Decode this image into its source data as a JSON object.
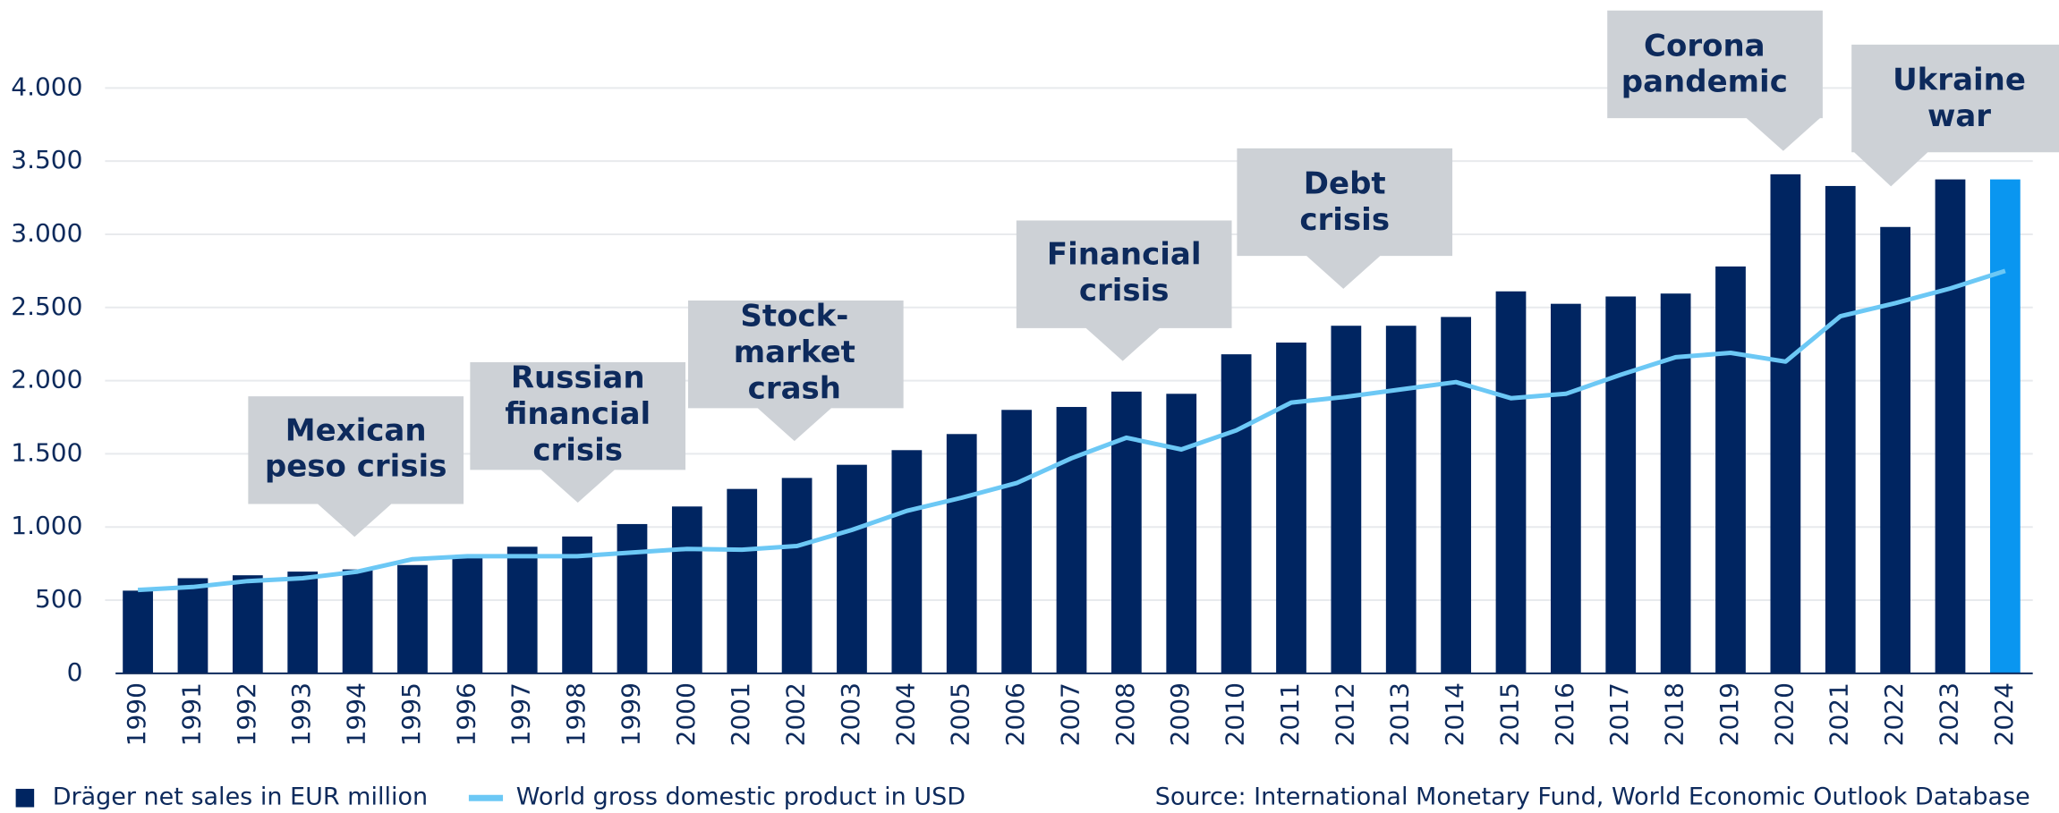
{
  "chart_data": {
    "type": "bar_line",
    "categories": [
      "1990",
      "1991",
      "1992",
      "1993",
      "1994",
      "1995",
      "1996",
      "1997",
      "1998",
      "1999",
      "2000",
      "2001",
      "2002",
      "2003",
      "2004",
      "2005",
      "2006",
      "2007",
      "2008",
      "2009",
      "2010",
      "2011",
      "2012",
      "2013",
      "2014",
      "2015",
      "2016",
      "2017",
      "2018",
      "2019",
      "2020",
      "2021",
      "2022",
      "2023",
      "2024"
    ],
    "series": [
      {
        "name": "Dräger net sales in EUR million",
        "type": "bar",
        "color": "#002561",
        "colors": [
          "#002561",
          "#002561",
          "#002561",
          "#002561",
          "#002561",
          "#002561",
          "#002561",
          "#002561",
          "#002561",
          "#002561",
          "#002561",
          "#002561",
          "#002561",
          "#002561",
          "#002561",
          "#002561",
          "#002561",
          "#002561",
          "#002561",
          "#002561",
          "#002561",
          "#002561",
          "#002561",
          "#002561",
          "#002561",
          "#002561",
          "#002561",
          "#002561",
          "#002561",
          "#002561",
          "#002561",
          "#002561",
          "#002561",
          "#002561",
          "#0a96f0"
        ],
        "values": [
          565,
          650,
          670,
          695,
          710,
          740,
          800,
          865,
          935,
          1020,
          1140,
          1260,
          1335,
          1425,
          1525,
          1635,
          1800,
          1820,
          1925,
          1910,
          2180,
          2260,
          2375,
          2375,
          2435,
          2610,
          2525,
          2575,
          2595,
          2780,
          3410,
          3330,
          3050,
          3375,
          3375
        ]
      },
      {
        "name": "World gross domestic product in USD",
        "type": "line",
        "color": "#6cc8f5",
        "values": [
          570,
          590,
          630,
          650,
          695,
          780,
          800,
          800,
          800,
          825,
          850,
          845,
          870,
          980,
          1110,
          1200,
          1300,
          1470,
          1610,
          1530,
          1660,
          1850,
          1890,
          1940,
          1990,
          1880,
          1910,
          2040,
          2160,
          2190,
          2130,
          2440,
          2530,
          2630,
          2750
        ]
      }
    ],
    "ylim": [
      0,
      4000
    ],
    "yticks": [
      0,
      500,
      {
        "value": 1000,
        "label": "1.000"
      },
      {
        "value": 1500,
        "label": "1.500"
      },
      {
        "value": 2000,
        "label": "2.000"
      },
      {
        "value": 2500,
        "label": "2.500"
      },
      {
        "value": 3000,
        "label": "3.000"
      },
      {
        "value": 3500,
        "label": "3.500"
      },
      {
        "value": 4000,
        "label": "4.000"
      }
    ],
    "grid": true,
    "annotations": [
      {
        "lines": [
          "Mexican",
          "peso crisis"
        ]
      },
      {
        "lines": [
          "Russian",
          "financial",
          "crisis"
        ]
      },
      {
        "lines": [
          "Stock-",
          "market",
          "crash"
        ]
      },
      {
        "lines": [
          "Financial",
          "crisis"
        ]
      },
      {
        "lines": [
          "Debt",
          "crisis"
        ]
      },
      {
        "lines": [
          "Corona",
          "pandemic"
        ]
      },
      {
        "lines": [
          "Ukraine",
          "war"
        ]
      }
    ],
    "source": "Source: International Monetary Fund, World Economic Outlook Database"
  }
}
